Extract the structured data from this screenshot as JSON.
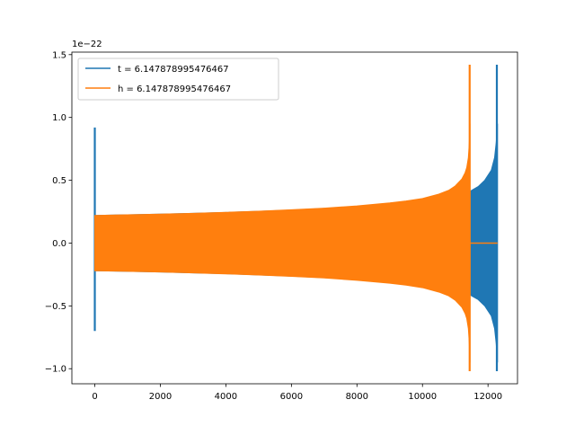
{
  "chart_data": {
    "type": "line",
    "title": "",
    "xlabel": "",
    "ylabel": "",
    "offset_text": "1e−22",
    "xlim": [
      -700,
      12900
    ],
    "ylim": [
      -1.12,
      1.52
    ],
    "x_ticks": [
      0,
      2000,
      4000,
      6000,
      8000,
      10000,
      12000
    ],
    "x_tick_labels": [
      "0",
      "2000",
      "4000",
      "6000",
      "8000",
      "10000",
      "12000"
    ],
    "y_ticks": [
      -1.0,
      -0.5,
      0.0,
      0.5,
      1.0,
      1.5
    ],
    "y_tick_labels": [
      "−1.0",
      "−0.5",
      "0.0",
      "0.5",
      "1.0",
      "1.5"
    ],
    "grid": false,
    "legend_position": "top-left",
    "series": [
      {
        "name": "t = 6.147878995476467",
        "color": "#1f77b4",
        "envelope_x": [
          0,
          1000,
          2000,
          3000,
          4000,
          5000,
          6000,
          7000,
          8000,
          9000,
          10000,
          10500,
          11000,
          11300,
          11450,
          11500,
          11700,
          11900,
          12100,
          12200,
          12250,
          12290
        ],
        "envelope_upper": [
          0.22,
          0.225,
          0.23,
          0.237,
          0.244,
          0.253,
          0.263,
          0.276,
          0.29,
          0.31,
          0.34,
          0.36,
          0.38,
          0.4,
          0.41,
          0.42,
          0.45,
          0.5,
          0.58,
          0.68,
          0.8,
          0.95
        ],
        "envelope_lower": [
          -0.22,
          -0.225,
          -0.23,
          -0.237,
          -0.244,
          -0.253,
          -0.263,
          -0.276,
          -0.29,
          -0.31,
          -0.34,
          -0.36,
          -0.38,
          -0.4,
          -0.41,
          -0.42,
          -0.45,
          -0.5,
          -0.58,
          -0.68,
          -0.8,
          -0.95
        ],
        "spikes": [
          {
            "x": 0,
            "min": -0.7,
            "max": 0.92
          },
          {
            "x": 12270,
            "min": -1.02,
            "max": 1.42
          }
        ]
      },
      {
        "name": "h = 6.147878995476467",
        "color": "#ff7f0e",
        "envelope_x": [
          0,
          1000,
          2000,
          3000,
          4000,
          5000,
          6000,
          7000,
          8000,
          9000,
          9500,
          10000,
          10500,
          10800,
          11000,
          11200,
          11300,
          11350,
          11400,
          11430,
          11450
        ],
        "envelope_upper": [
          0.22,
          0.225,
          0.23,
          0.237,
          0.245,
          0.254,
          0.265,
          0.278,
          0.296,
          0.32,
          0.335,
          0.355,
          0.39,
          0.42,
          0.455,
          0.51,
          0.56,
          0.6,
          0.68,
          0.8,
          0.95
        ],
        "envelope_lower": [
          -0.22,
          -0.225,
          -0.23,
          -0.237,
          -0.245,
          -0.254,
          -0.265,
          -0.278,
          -0.296,
          -0.32,
          -0.335,
          -0.355,
          -0.39,
          -0.42,
          -0.455,
          -0.51,
          -0.56,
          -0.6,
          -0.68,
          -0.8,
          -0.95
        ],
        "spikes": [
          {
            "x": 11440,
            "min": -1.02,
            "max": 1.42
          }
        ],
        "flat_segment": {
          "x_start": 11450,
          "x_end": 12290,
          "y": 0.0
        }
      }
    ]
  }
}
